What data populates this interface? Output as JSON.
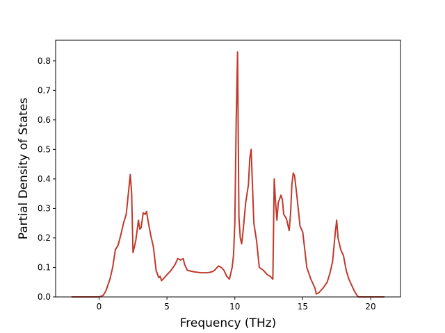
{
  "chart_data": {
    "type": "line",
    "xlabel": "Frequency (THz)",
    "ylabel": "Partial Density of States",
    "xlim": [
      -3.2,
      22.2
    ],
    "ylim": [
      0.0,
      0.87
    ],
    "xticks": [
      0,
      5,
      10,
      15,
      20
    ],
    "yticks": [
      0.0,
      0.1,
      0.2,
      0.3,
      0.4,
      0.5,
      0.6,
      0.7,
      0.8
    ],
    "xtick_labels": [
      "0",
      "5",
      "10",
      "15",
      "20"
    ],
    "ytick_labels": [
      "0.0",
      "0.1",
      "0.2",
      "0.3",
      "0.4",
      "0.5",
      "0.6",
      "0.7",
      "0.8"
    ],
    "grid": false,
    "series": [
      {
        "color": "#c0392b",
        "x": [
          -2.0,
          0.0,
          0.3,
          0.5,
          0.8,
          1.0,
          1.2,
          1.4,
          1.6,
          1.8,
          2.0,
          2.2,
          2.3,
          2.4,
          2.5,
          2.7,
          2.9,
          3.0,
          3.1,
          3.25,
          3.4,
          3.5,
          3.6,
          3.8,
          4.0,
          4.2,
          4.4,
          4.5,
          4.6,
          4.8,
          5.0,
          5.3,
          5.6,
          5.8,
          6.0,
          6.2,
          6.3,
          6.5,
          7.0,
          7.5,
          8.0,
          8.3,
          8.5,
          8.8,
          9.0,
          9.2,
          9.4,
          9.6,
          9.8,
          9.9,
          10.0,
          10.1,
          10.2,
          10.3,
          10.4,
          10.5,
          10.6,
          10.8,
          11.0,
          11.1,
          11.2,
          11.4,
          11.6,
          11.8,
          12.1,
          12.4,
          12.6,
          12.8,
          12.9,
          13.0,
          13.1,
          13.2,
          13.4,
          13.5,
          13.6,
          13.8,
          14.0,
          14.1,
          14.2,
          14.3,
          14.4,
          14.6,
          14.8,
          15.0,
          15.3,
          15.6,
          15.9,
          16.0,
          16.2,
          16.5,
          16.8,
          17.0,
          17.2,
          17.4,
          17.5,
          17.6,
          17.8,
          18.0,
          18.2,
          18.4,
          18.6,
          18.8,
          19.0,
          19.1,
          19.3,
          20.0,
          21.0
        ],
        "y": [
          0.0,
          0.0,
          0.005,
          0.02,
          0.06,
          0.1,
          0.16,
          0.175,
          0.21,
          0.25,
          0.28,
          0.37,
          0.415,
          0.35,
          0.15,
          0.19,
          0.26,
          0.23,
          0.235,
          0.285,
          0.28,
          0.29,
          0.26,
          0.21,
          0.17,
          0.09,
          0.065,
          0.07,
          0.055,
          0.065,
          0.075,
          0.09,
          0.11,
          0.13,
          0.125,
          0.13,
          0.11,
          0.09,
          0.085,
          0.082,
          0.082,
          0.085,
          0.09,
          0.105,
          0.1,
          0.09,
          0.07,
          0.06,
          0.1,
          0.14,
          0.25,
          0.6,
          0.83,
          0.27,
          0.2,
          0.18,
          0.22,
          0.32,
          0.38,
          0.47,
          0.5,
          0.25,
          0.19,
          0.1,
          0.09,
          0.075,
          0.07,
          0.06,
          0.4,
          0.32,
          0.26,
          0.32,
          0.345,
          0.33,
          0.28,
          0.265,
          0.225,
          0.28,
          0.38,
          0.42,
          0.41,
          0.33,
          0.24,
          0.22,
          0.1,
          0.06,
          0.03,
          0.01,
          0.015,
          0.03,
          0.05,
          0.08,
          0.12,
          0.22,
          0.26,
          0.2,
          0.16,
          0.14,
          0.09,
          0.06,
          0.04,
          0.02,
          0.005,
          0.0,
          0.0,
          0.0,
          0.0
        ]
      }
    ]
  }
}
